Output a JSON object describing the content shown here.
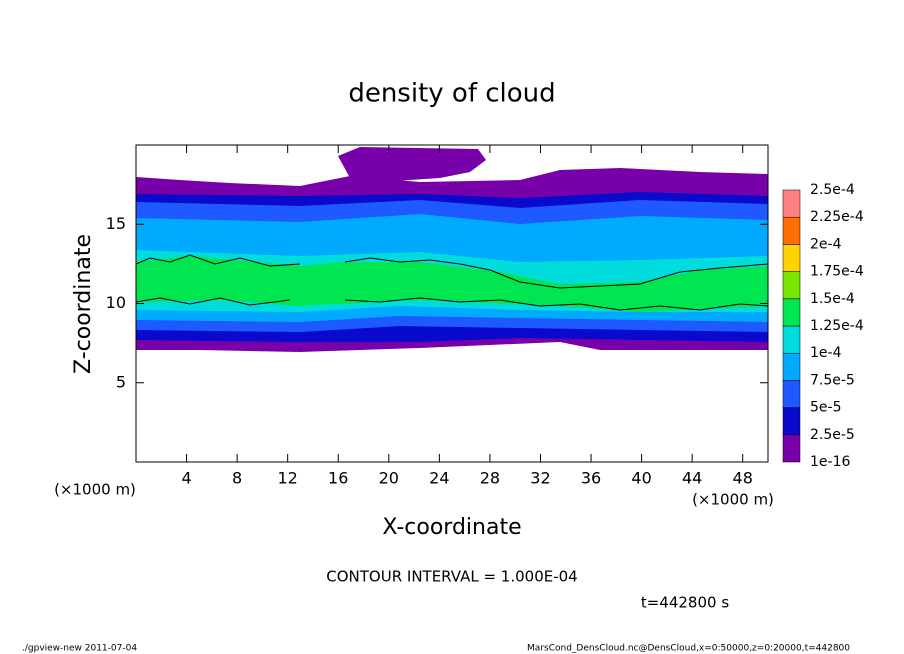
{
  "chart_data": {
    "type": "contour",
    "title": "density of cloud",
    "x_label": "X-coordinate",
    "y_label": "Z-coordinate",
    "x_unit": "(×1000 m)",
    "y_unit": "(×1000 m)",
    "xlim": [
      0,
      50
    ],
    "ylim": [
      0,
      20
    ],
    "xticks": [
      4,
      8,
      12,
      16,
      20,
      24,
      28,
      32,
      36,
      40,
      44,
      48
    ],
    "yticks": [
      5,
      10,
      15
    ],
    "colorbar": {
      "levels": [
        1e-16,
        {
          "value": 2.5e-05,
          "label": "2.5e-5"
        },
        {
          "value": 5e-05,
          "label": "5e-5"
        },
        {
          "value": 7.5e-05,
          "label": "7.5e-5"
        },
        {
          "value": 0.0001,
          "label": "1e-4"
        },
        {
          "value": 0.000125,
          "label": "1.25e-4"
        },
        {
          "value": 0.00015,
          "label": "1.5e-4"
        },
        {
          "value": 0.000175,
          "label": "1.75e-4"
        },
        {
          "value": 0.0002,
          "label": "2e-4"
        },
        {
          "value": 0.000225,
          "label": "2.25e-4"
        },
        {
          "value": 0.00025,
          "label": "2.5e-4"
        }
      ],
      "colors": [
        "#7800aa",
        "#0a0acd",
        "#1e5aff",
        "#00aaff",
        "#00dcdc",
        "#00e650",
        "#78e600",
        "#ffd200",
        "#ff6e00",
        "#ff8080"
      ]
    },
    "contour_interval": "CONTOUR INTERVAL = 1.000E-04",
    "time_label": "t=442800 s"
  },
  "footer": {
    "left": "./gpview-new  2011-07-04",
    "right": "MarsCond_DensCloud.nc@DensCloud,x=0:50000,z=0:20000,t=442800"
  }
}
